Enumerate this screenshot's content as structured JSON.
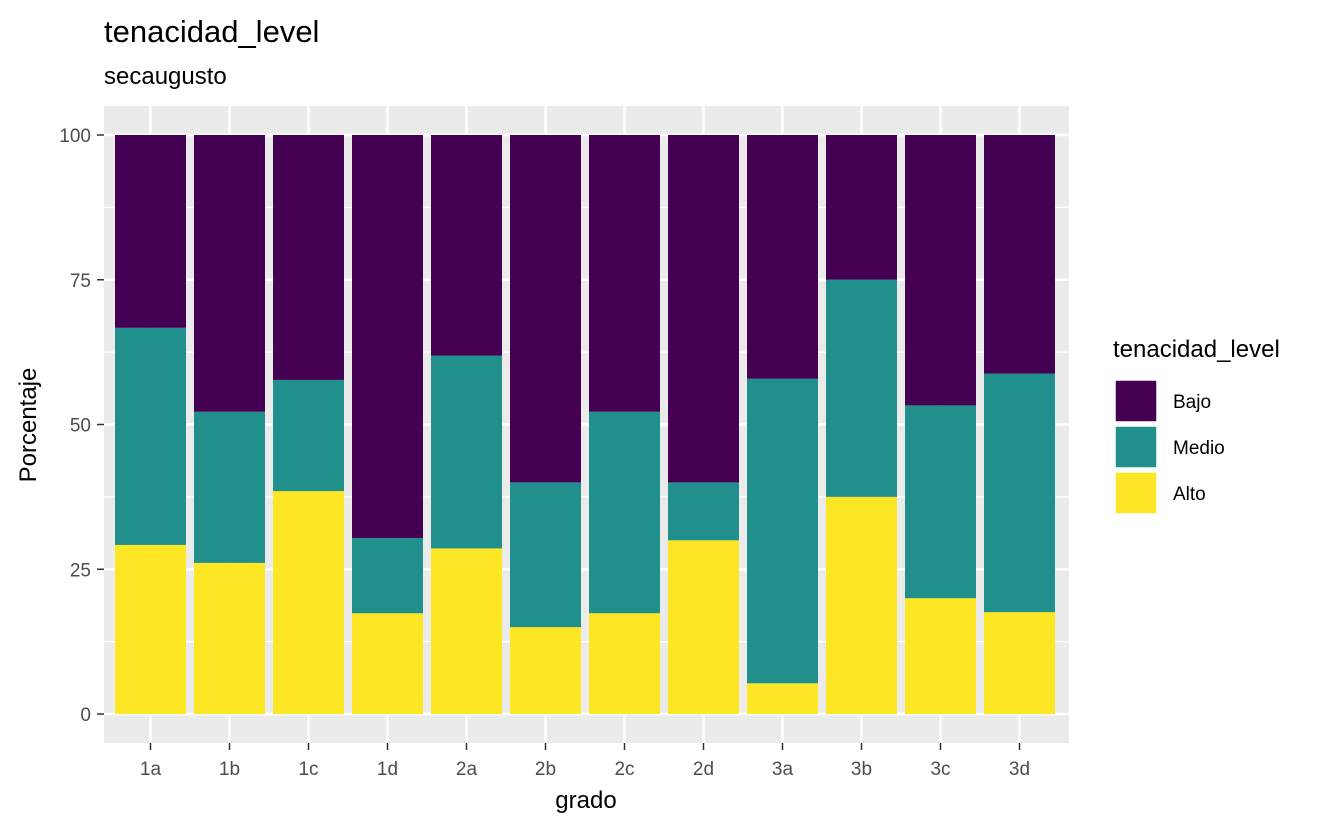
{
  "chart_data": {
    "type": "bar",
    "stacked": true,
    "title": "tenacidad_level",
    "subtitle": "secaugusto",
    "xlabel": "grado",
    "ylabel": "Porcentaje",
    "ylim": [
      0,
      100
    ],
    "yticks": [
      "0",
      "25",
      "50",
      "75",
      "100"
    ],
    "categories": [
      "1a",
      "1b",
      "1c",
      "1d",
      "2a",
      "2b",
      "2c",
      "2d",
      "3a",
      "3b",
      "3c",
      "3d"
    ],
    "series": [
      {
        "name": "Alto",
        "color": "#FDE725",
        "values": [
          29.2,
          26.1,
          38.5,
          17.4,
          28.6,
          15.0,
          17.4,
          30.0,
          5.3,
          37.5,
          20.0,
          17.6
        ]
      },
      {
        "name": "Medio",
        "color": "#21908C",
        "values": [
          37.5,
          26.1,
          19.2,
          13.0,
          33.3,
          25.0,
          34.8,
          10.0,
          52.6,
          37.5,
          33.3,
          41.2
        ]
      },
      {
        "name": "Bajo",
        "color": "#440154",
        "values": [
          33.3,
          47.8,
          42.3,
          69.6,
          38.1,
          60.0,
          47.8,
          60.0,
          42.1,
          25.0,
          46.7,
          41.2
        ]
      }
    ],
    "legend": {
      "title": "tenacidad_level",
      "placement": "right",
      "order": [
        "Bajo",
        "Medio",
        "Alto"
      ]
    },
    "grid": true,
    "panel_background": "#EBEBEB"
  }
}
